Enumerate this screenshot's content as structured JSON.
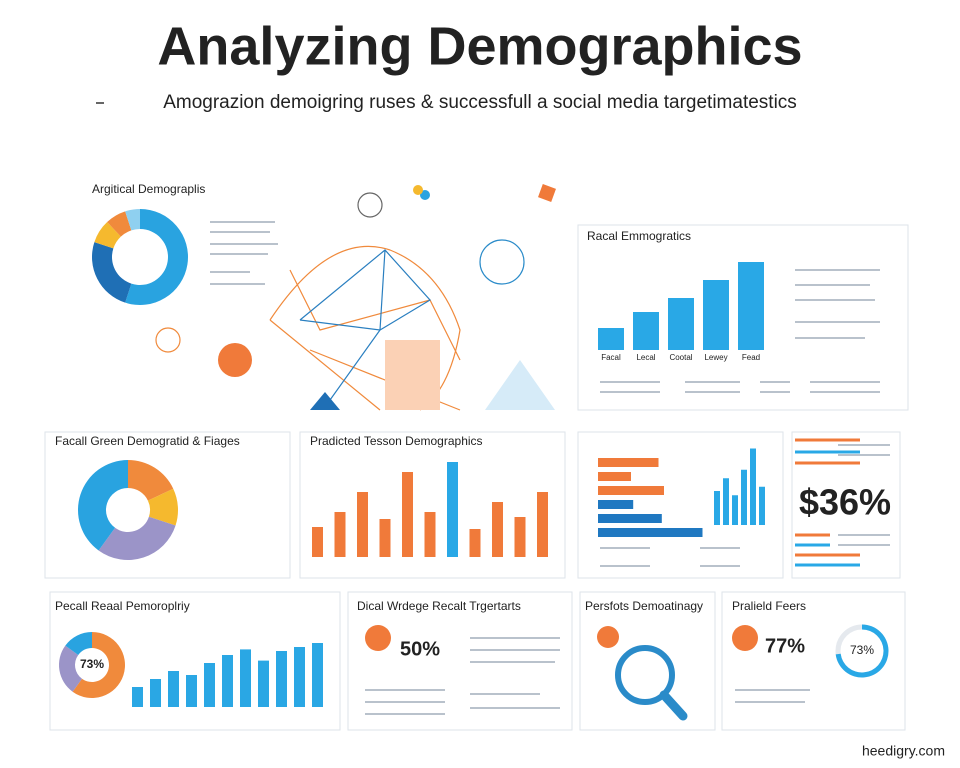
{
  "header": {
    "title": "Analyzing Demographics",
    "subtitle": "Amograzion demoigring ruses & successfull a social media targetimatestics"
  },
  "panels": [
    {
      "type": "donut",
      "title": "Argitical Demograplis",
      "values": [
        55,
        25,
        8,
        7,
        5
      ],
      "colors": [
        "#29a3e0",
        "#1f6fb5",
        "#f5b92e",
        "#f08a3c",
        "#8fd0f0"
      ]
    },
    {
      "type": "bar",
      "title": "Racal Emmogratics",
      "categories": [
        "Facal",
        "Lecal",
        "Cootal",
        "Lewey",
        "Fead"
      ],
      "values": [
        22,
        38,
        52,
        70,
        88
      ],
      "ylim": [
        0,
        100
      ],
      "color": "#29a8e6"
    },
    {
      "type": "donut",
      "title": "Facall Green Demogratid & Fiages",
      "values": [
        18,
        12,
        30,
        40
      ],
      "colors": [
        "#f08a3c",
        "#f5b92e",
        "#9b94c8",
        "#29a3e0"
      ]
    },
    {
      "type": "bar",
      "title": "Pradicted Tesson Demographics",
      "values": [
        30,
        45,
        65,
        38,
        85,
        45,
        95,
        28,
        55,
        40,
        65
      ],
      "ylim": [
        0,
        100
      ],
      "colors": [
        "#f07a3a",
        "#f07a3a",
        "#f07a3a",
        "#f07a3a",
        "#f07a3a",
        "#f07a3a",
        "#29a8e6",
        "#f07a3a",
        "#f07a3a",
        "#f07a3a",
        "#f07a3a"
      ]
    },
    {
      "type": "hbar",
      "values": [
        55,
        30,
        60,
        32,
        58,
        95
      ],
      "xlim": [
        0,
        100
      ],
      "colors": [
        "#f07a3a",
        "#f07a3a",
        "#f07a3a",
        "#1f78c1",
        "#1f78c1",
        "#1f78c1"
      ]
    },
    {
      "type": "bar",
      "values": [
        40,
        55,
        35,
        65,
        90,
        45
      ],
      "ylim": [
        0,
        100
      ],
      "color": "#29a8e6"
    },
    {
      "type": "stat",
      "stat": "$36%",
      "color": "#f07a3a"
    },
    {
      "type": "donut",
      "title": "Pecall Reaal Pemoroplriy",
      "center": "73%",
      "values": [
        60,
        25,
        15
      ],
      "colors": [
        "#f08a3c",
        "#9b94c8",
        "#29a3e0"
      ]
    },
    {
      "type": "bar",
      "values": [
        25,
        35,
        45,
        40,
        55,
        65,
        72,
        58,
        70,
        75,
        80
      ],
      "ylim": [
        0,
        100
      ],
      "color": "#2aa7e4"
    },
    {
      "type": "stat",
      "title": "Dical Wrdege Recalt Trgertarts",
      "stat": "50%",
      "color": "#f07a3a"
    },
    {
      "type": "stat",
      "title": "Persfots Demoatinagy",
      "color": "#2a8bc9"
    },
    {
      "type": "stat",
      "title": "Pralield Feers",
      "stat": "77%",
      "color": "#f07a3a"
    },
    {
      "type": "gauge",
      "center": "73%",
      "values": [
        73
      ],
      "ylim": [
        0,
        100
      ],
      "color": "#29a8e6"
    }
  ],
  "footer": "heedigry.com"
}
